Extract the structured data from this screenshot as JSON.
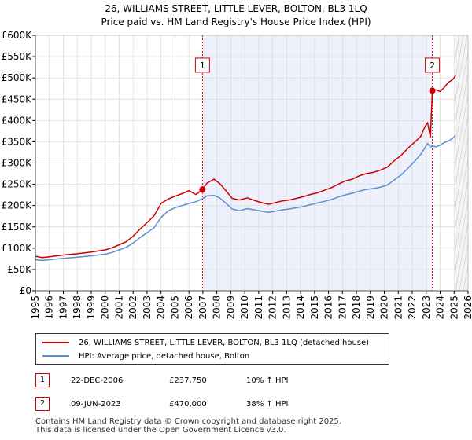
{
  "chart_data": {
    "type": "line",
    "title": "26, WILLIAMS STREET, LITTLE LEVER, BOLTON, BL3 1LQ",
    "subtitle": "Price paid vs. HM Land Registry's House Price Index (HPI)",
    "xlim": [
      1995,
      2026
    ],
    "ylim": [
      0,
      600000
    ],
    "x_ticks": [
      "1995",
      "1996",
      "1997",
      "1998",
      "1999",
      "2000",
      "2001",
      "2002",
      "2003",
      "2004",
      "2005",
      "2006",
      "2007",
      "2008",
      "2009",
      "2010",
      "2011",
      "2012",
      "2013",
      "2014",
      "2015",
      "2016",
      "2017",
      "2018",
      "2019",
      "2020",
      "2021",
      "2022",
      "2023",
      "2024",
      "2025",
      "2026"
    ],
    "y_ticks": [
      {
        "value": 0,
        "label": "£0"
      },
      {
        "value": 50000,
        "label": "£50K"
      },
      {
        "value": 100000,
        "label": "£100K"
      },
      {
        "value": 150000,
        "label": "£150K"
      },
      {
        "value": 200000,
        "label": "£200K"
      },
      {
        "value": 250000,
        "label": "£250K"
      },
      {
        "value": 300000,
        "label": "£300K"
      },
      {
        "value": 350000,
        "label": "£350K"
      },
      {
        "value": 400000,
        "label": "£400K"
      },
      {
        "value": 450000,
        "label": "£450K"
      },
      {
        "value": 500000,
        "label": "£500K"
      },
      {
        "value": 550000,
        "label": "£550K"
      },
      {
        "value": 600000,
        "label": "£600K"
      }
    ],
    "ownership_shade": {
      "from": 2006.97,
      "to": 2023.44
    },
    "forecast_from": 2025.1,
    "series": [
      {
        "name": "26, WILLIAMS STREET, LITTLE LEVER, BOLTON, BL3 1LQ (detached house)",
        "color": "#cc0000",
        "x": [
          1995,
          1995.5,
          1996,
          1997,
          1998,
          1999,
          2000,
          2000.5,
          2001,
          2001.5,
          2002,
          2002.5,
          2003,
          2003.5,
          2004,
          2004.5,
          2005,
          2005.5,
          2006,
          2006.5,
          2006.97,
          2007.3,
          2007.8,
          2008.2,
          2008.6,
          2009.1,
          2009.6,
          2010.2,
          2010.7,
          2011.2,
          2011.7,
          2012.2,
          2012.7,
          2013.2,
          2013.7,
          2014.2,
          2014.7,
          2015.2,
          2015.7,
          2016.2,
          2016.7,
          2017.2,
          2017.7,
          2018.2,
          2018.7,
          2019.2,
          2019.7,
          2020.2,
          2020.7,
          2021.2,
          2021.7,
          2022.2,
          2022.6,
          2022.9,
          2023.1,
          2023.3,
          2023.44,
          2023.7,
          2024.0,
          2024.3,
          2024.6,
          2024.9,
          2025.1
        ],
        "y": [
          81000,
          78000,
          80000,
          84000,
          87000,
          91000,
          96000,
          101000,
          108000,
          115000,
          128000,
          145000,
          160000,
          176000,
          205000,
          215000,
          222000,
          228000,
          235000,
          226000,
          237750,
          253000,
          262000,
          252000,
          237000,
          217000,
          213000,
          218000,
          212000,
          207000,
          203000,
          207000,
          211000,
          213000,
          217000,
          221000,
          226000,
          230000,
          236000,
          242000,
          250000,
          258000,
          262000,
          270000,
          275000,
          278000,
          283000,
          290000,
          305000,
          318000,
          335000,
          350000,
          362000,
          385000,
          395000,
          361000,
          470000,
          472000,
          468000,
          478000,
          490000,
          496000,
          505000
        ]
      },
      {
        "name": "HPI: Average price, detached house, Bolton",
        "color": "#5b8fd0",
        "x": [
          1995,
          1995.5,
          1996,
          1997,
          1998,
          1999,
          2000,
          2000.5,
          2001,
          2001.5,
          2002,
          2002.5,
          2003,
          2003.5,
          2004,
          2004.5,
          2005,
          2005.5,
          2006,
          2006.5,
          2006.97,
          2007.3,
          2007.8,
          2008.2,
          2008.6,
          2009.1,
          2009.6,
          2010.2,
          2010.7,
          2011.2,
          2011.7,
          2012.2,
          2012.7,
          2013.2,
          2013.7,
          2014.2,
          2014.7,
          2015.2,
          2015.7,
          2016.2,
          2016.7,
          2017.2,
          2017.7,
          2018.2,
          2018.7,
          2019.2,
          2019.7,
          2020.2,
          2020.7,
          2021.2,
          2021.7,
          2022.2,
          2022.6,
          2022.9,
          2023.1,
          2023.3,
          2023.44,
          2023.7,
          2024.0,
          2024.3,
          2024.6,
          2024.9,
          2025.1
        ],
        "y": [
          73000,
          71000,
          73000,
          76000,
          79000,
          82000,
          86000,
          90000,
          96000,
          102000,
          112000,
          125000,
          136000,
          148000,
          172000,
          187000,
          195000,
          200000,
          205000,
          209000,
          216000,
          223000,
          224000,
          218000,
          207000,
          192000,
          188000,
          193000,
          190000,
          187000,
          184000,
          187000,
          190000,
          192000,
          195000,
          198000,
          202000,
          206000,
          210000,
          214000,
          220000,
          225000,
          229000,
          234000,
          238000,
          240000,
          243000,
          248000,
          260000,
          272000,
          288000,
          305000,
          320000,
          335000,
          346000,
          338000,
          340000,
          338000,
          342000,
          348000,
          352000,
          358000,
          365000
        ]
      }
    ],
    "markers": [
      {
        "id": "1",
        "x": 2006.97,
        "y": 237750,
        "label_y": 530000
      },
      {
        "id": "2",
        "x": 2023.44,
        "y": 470000,
        "label_y": 530000
      }
    ]
  },
  "legend": {
    "property_label": "26, WILLIAMS STREET, LITTLE LEVER, BOLTON, BL3 1LQ (detached house)",
    "hpi_label": "HPI: Average price, detached house, Bolton"
  },
  "sales": [
    {
      "id": "1",
      "date": "22-DEC-2006",
      "price": "£237,750",
      "hpi": "10% ↑ HPI"
    },
    {
      "id": "2",
      "date": "09-JUN-2023",
      "price": "£470,000",
      "hpi": "38% ↑ HPI"
    }
  ],
  "footer": {
    "line1": "Contains HM Land Registry data © Crown copyright and database right 2025.",
    "line2": "This data is licensed under the Open Government Licence v3.0."
  },
  "colors": {
    "property": "#cc0000",
    "hpi": "#5b8fd0",
    "shade": "#eef1fb",
    "grid": "#d9d9d9"
  }
}
